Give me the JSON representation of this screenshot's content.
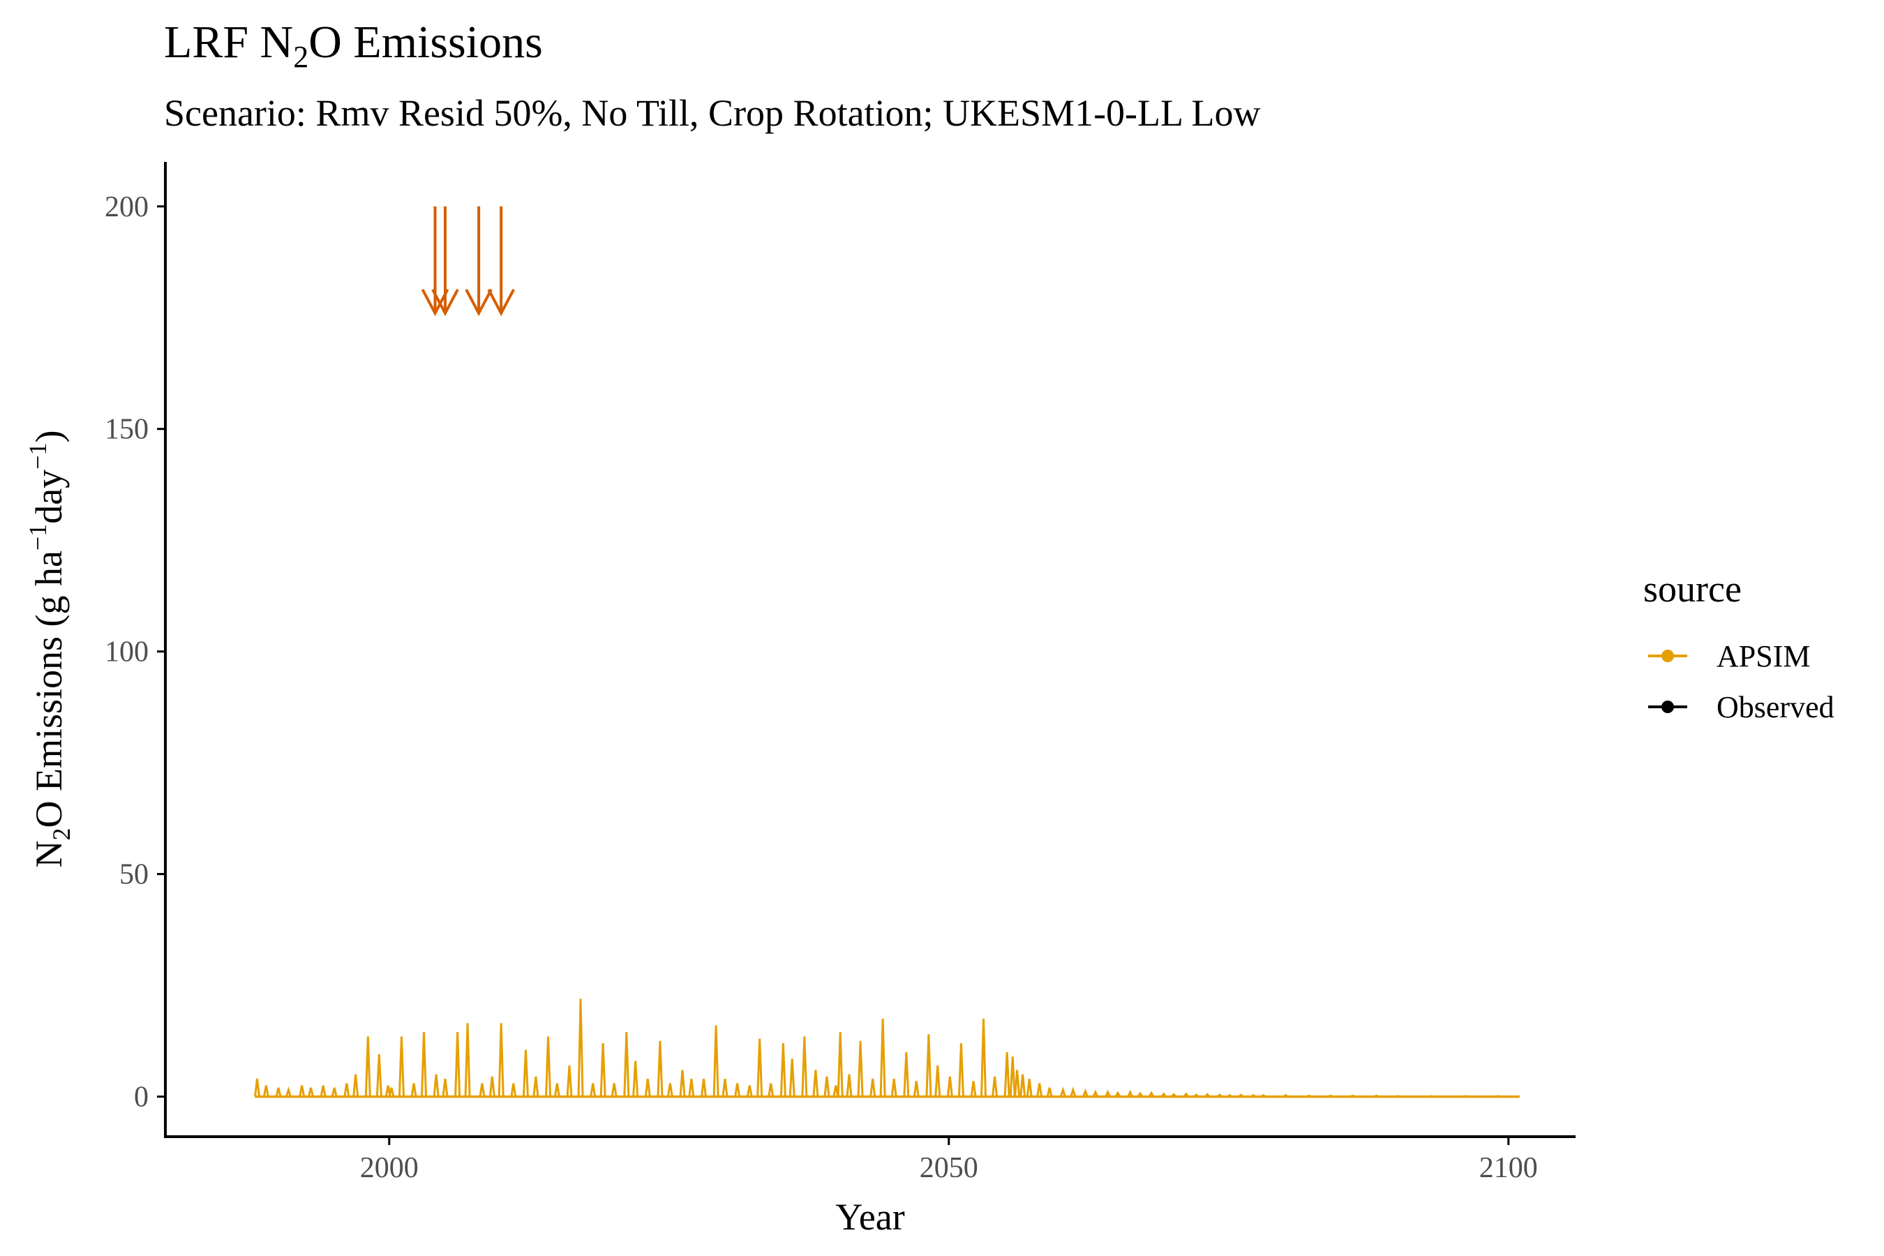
{
  "chart_data": {
    "type": "line",
    "title_main": "LRF N",
    "title_sub_2": "2",
    "title_rest": "O Emissions",
    "subtitle": "Scenario: Rmv Resid 50%, No Till, Crop Rotation; UKESM1-0-LL Low",
    "xlabel": "Year",
    "ylabel_a": "N",
    "ylabel_sub": "2",
    "ylabel_b": "O Emissions (g ha",
    "ylabel_sup1": "−1",
    "ylabel_c": "day",
    "ylabel_sup2": "−1",
    "ylabel_d": ")",
    "xlim": [
      1980,
      2106
    ],
    "ylim": [
      -9,
      210
    ],
    "x_ticks": [
      2000,
      2050,
      2100
    ],
    "x_tick_labels": [
      "2000",
      "2050",
      "2100"
    ],
    "y_ticks": [
      0,
      50,
      100,
      150,
      200
    ],
    "y_tick_labels": [
      "0",
      "50",
      "100",
      "150",
      "200"
    ],
    "grid": false,
    "legend": {
      "title": "source",
      "position": "right",
      "entries": [
        {
          "label": "APSIM",
          "color": "#E69F00"
        },
        {
          "label": "Observed",
          "color": "#000000"
        }
      ]
    },
    "series": [
      {
        "name": "APSIM",
        "color": "#E69F00",
        "start_year": 1988,
        "end_year": 2101,
        "baseline": 0,
        "spikes": [
          [
            1988.2,
            4
          ],
          [
            1989.0,
            2.5
          ],
          [
            1990.1,
            2
          ],
          [
            1991.0,
            1.5
          ],
          [
            1992.2,
            2.5
          ],
          [
            1993.0,
            2
          ],
          [
            1994.1,
            2.5
          ],
          [
            1995.1,
            2
          ],
          [
            1996.2,
            3
          ],
          [
            1997.0,
            5
          ],
          [
            1998.1,
            13.5
          ],
          [
            1999.1,
            9.5
          ],
          [
            1999.9,
            2.5
          ],
          [
            2000.2,
            2
          ],
          [
            2001.1,
            13.5
          ],
          [
            2002.2,
            3
          ],
          [
            2003.1,
            14.5
          ],
          [
            2004.2,
            5
          ],
          [
            2005.0,
            4
          ],
          [
            2006.1,
            14.5
          ],
          [
            2007.0,
            16.5
          ],
          [
            2008.3,
            3
          ],
          [
            2009.2,
            4.5
          ],
          [
            2010.0,
            16.5
          ],
          [
            2011.1,
            3
          ],
          [
            2012.2,
            10.5
          ],
          [
            2013.1,
            4.5
          ],
          [
            2014.2,
            13.5
          ],
          [
            2015.0,
            3
          ],
          [
            2016.1,
            7
          ],
          [
            2017.1,
            22
          ],
          [
            2018.2,
            3
          ],
          [
            2019.1,
            12
          ],
          [
            2020.1,
            3
          ],
          [
            2021.2,
            14.5
          ],
          [
            2022.0,
            8
          ],
          [
            2023.1,
            4
          ],
          [
            2024.2,
            12.5
          ],
          [
            2025.1,
            3
          ],
          [
            2026.2,
            6
          ],
          [
            2027.0,
            4
          ],
          [
            2028.1,
            4
          ],
          [
            2029.2,
            16
          ],
          [
            2030.0,
            4
          ],
          [
            2031.1,
            3
          ],
          [
            2032.2,
            2.5
          ],
          [
            2033.1,
            13
          ],
          [
            2034.1,
            3
          ],
          [
            2035.2,
            12
          ],
          [
            2036.0,
            8.5
          ],
          [
            2037.1,
            13.5
          ],
          [
            2038.1,
            6
          ],
          [
            2039.1,
            4.5
          ],
          [
            2039.9,
            2.5
          ],
          [
            2040.3,
            14.5
          ],
          [
            2041.1,
            5
          ],
          [
            2042.1,
            12.5
          ],
          [
            2043.2,
            4
          ],
          [
            2044.1,
            17.5
          ],
          [
            2045.1,
            4
          ],
          [
            2046.2,
            10
          ],
          [
            2047.1,
            3.5
          ],
          [
            2048.2,
            14
          ],
          [
            2049.0,
            7
          ],
          [
            2050.1,
            4.5
          ],
          [
            2051.1,
            12
          ],
          [
            2052.2,
            3.5
          ],
          [
            2053.1,
            17.5
          ],
          [
            2054.1,
            4.5
          ],
          [
            2055.2,
            10
          ],
          [
            2055.7,
            9
          ],
          [
            2056.1,
            6
          ],
          [
            2056.6,
            5
          ],
          [
            2057.2,
            4
          ],
          [
            2058.1,
            3
          ],
          [
            2059.0,
            2
          ],
          [
            2060.2,
            1.5
          ],
          [
            2061.1,
            1.5
          ],
          [
            2062.2,
            1.2
          ],
          [
            2063.1,
            1
          ],
          [
            2064.2,
            1
          ],
          [
            2065.1,
            0.8
          ],
          [
            2066.2,
            1
          ],
          [
            2067.1,
            0.7
          ],
          [
            2068.1,
            0.8
          ],
          [
            2069.2,
            0.6
          ],
          [
            2070.1,
            0.5
          ],
          [
            2071.2,
            0.6
          ],
          [
            2072.1,
            0.4
          ],
          [
            2073.1,
            0.5
          ],
          [
            2074.2,
            0.4
          ],
          [
            2075.1,
            0.3
          ],
          [
            2076.1,
            0.4
          ],
          [
            2077.2,
            0.3
          ],
          [
            2078.1,
            0.3
          ],
          [
            2080.1,
            0.3
          ],
          [
            2082.2,
            0.2
          ],
          [
            2084.1,
            0.2
          ],
          [
            2086.1,
            0.2
          ],
          [
            2088.2,
            0.2
          ],
          [
            2090.1,
            0.1
          ],
          [
            2093.1,
            0.1
          ],
          [
            2096.2,
            0.1
          ],
          [
            2099.1,
            0.1
          ]
        ]
      }
    ],
    "annotations": {
      "arrows": [
        {
          "x": 2004.1,
          "y_from": 200,
          "y_to": 176
        },
        {
          "x": 2005.0,
          "y_from": 200,
          "y_to": 176
        },
        {
          "x": 2008.0,
          "y_from": 200,
          "y_to": 176
        },
        {
          "x": 2010.0,
          "y_from": 200,
          "y_to": 176
        }
      ],
      "arrow_color": "#D55E00"
    }
  }
}
